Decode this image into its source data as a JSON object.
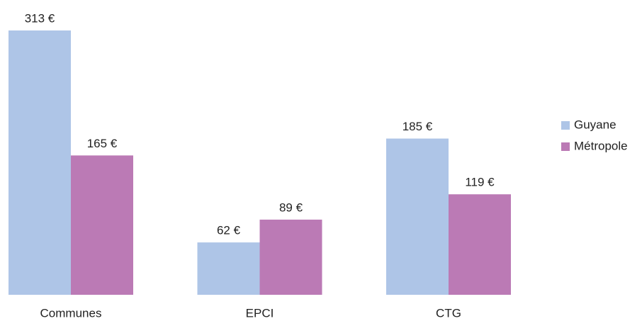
{
  "chart_data": {
    "type": "bar",
    "categories": [
      "Communes",
      "EPCI",
      "CTG"
    ],
    "series": [
      {
        "name": "Guyane",
        "color": "#aec5e7",
        "values": [
          313,
          62,
          185
        ],
        "value_labels": [
          "313 €",
          "62 €",
          "185 €"
        ]
      },
      {
        "name": "Métropole",
        "color": "#bb7ab5",
        "values": [
          165,
          89,
          119
        ],
        "value_labels": [
          "165 €",
          "89 €",
          "119 €"
        ]
      }
    ],
    "legend": "right"
  }
}
